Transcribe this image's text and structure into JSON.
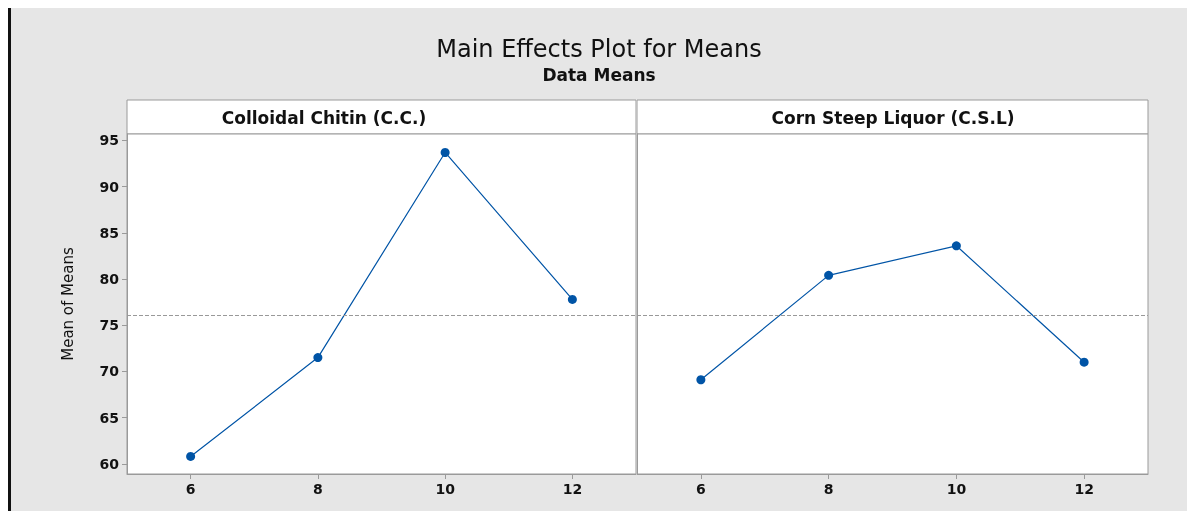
{
  "chart_data": [
    {
      "type": "line",
      "title": "Colloidal Chitin (C.C.)",
      "ylabel": "Mean of Means",
      "annotations": [
        "Main Effects Plot for Means",
        "Data Means"
      ],
      "x": [
        6,
        8,
        10,
        12
      ],
      "series": [
        {
          "color": "#0054a6",
          "values": [
            60.8,
            71.5,
            93.7,
            77.8
          ]
        }
      ],
      "xlim": [
        5,
        13
      ],
      "xticks": [
        6,
        8,
        10,
        12
      ],
      "ylim": [
        58.9,
        95.7
      ],
      "yticks": [
        60,
        65,
        70,
        75,
        80,
        85,
        90,
        95
      ],
      "ref_lines": [
        {
          "axis": "y",
          "value": 76.1,
          "color": "#999999",
          "line_style": "dashed"
        }
      ],
      "marker": "circle",
      "line_style": "solid",
      "grid": false
    },
    {
      "type": "line",
      "title": "Corn Steep Liquor (C.S.L)",
      "x": [
        6,
        8,
        10,
        12
      ],
      "series": [
        {
          "color": "#0054a6",
          "values": [
            69.1,
            80.4,
            83.6,
            71.0
          ]
        }
      ],
      "xlim": [
        5,
        13
      ],
      "xticks": [
        6,
        8,
        10,
        12
      ],
      "ylim": [
        58.9,
        95.7
      ],
      "yticks": [
        60,
        65,
        70,
        75,
        80,
        85,
        90,
        95
      ],
      "ref_lines": [
        {
          "axis": "y",
          "value": 76.1,
          "color": "#999999",
          "line_style": "dashed"
        }
      ],
      "marker": "circle",
      "line_style": "solid",
      "grid": false,
      "tick_labels": "x"
    }
  ]
}
